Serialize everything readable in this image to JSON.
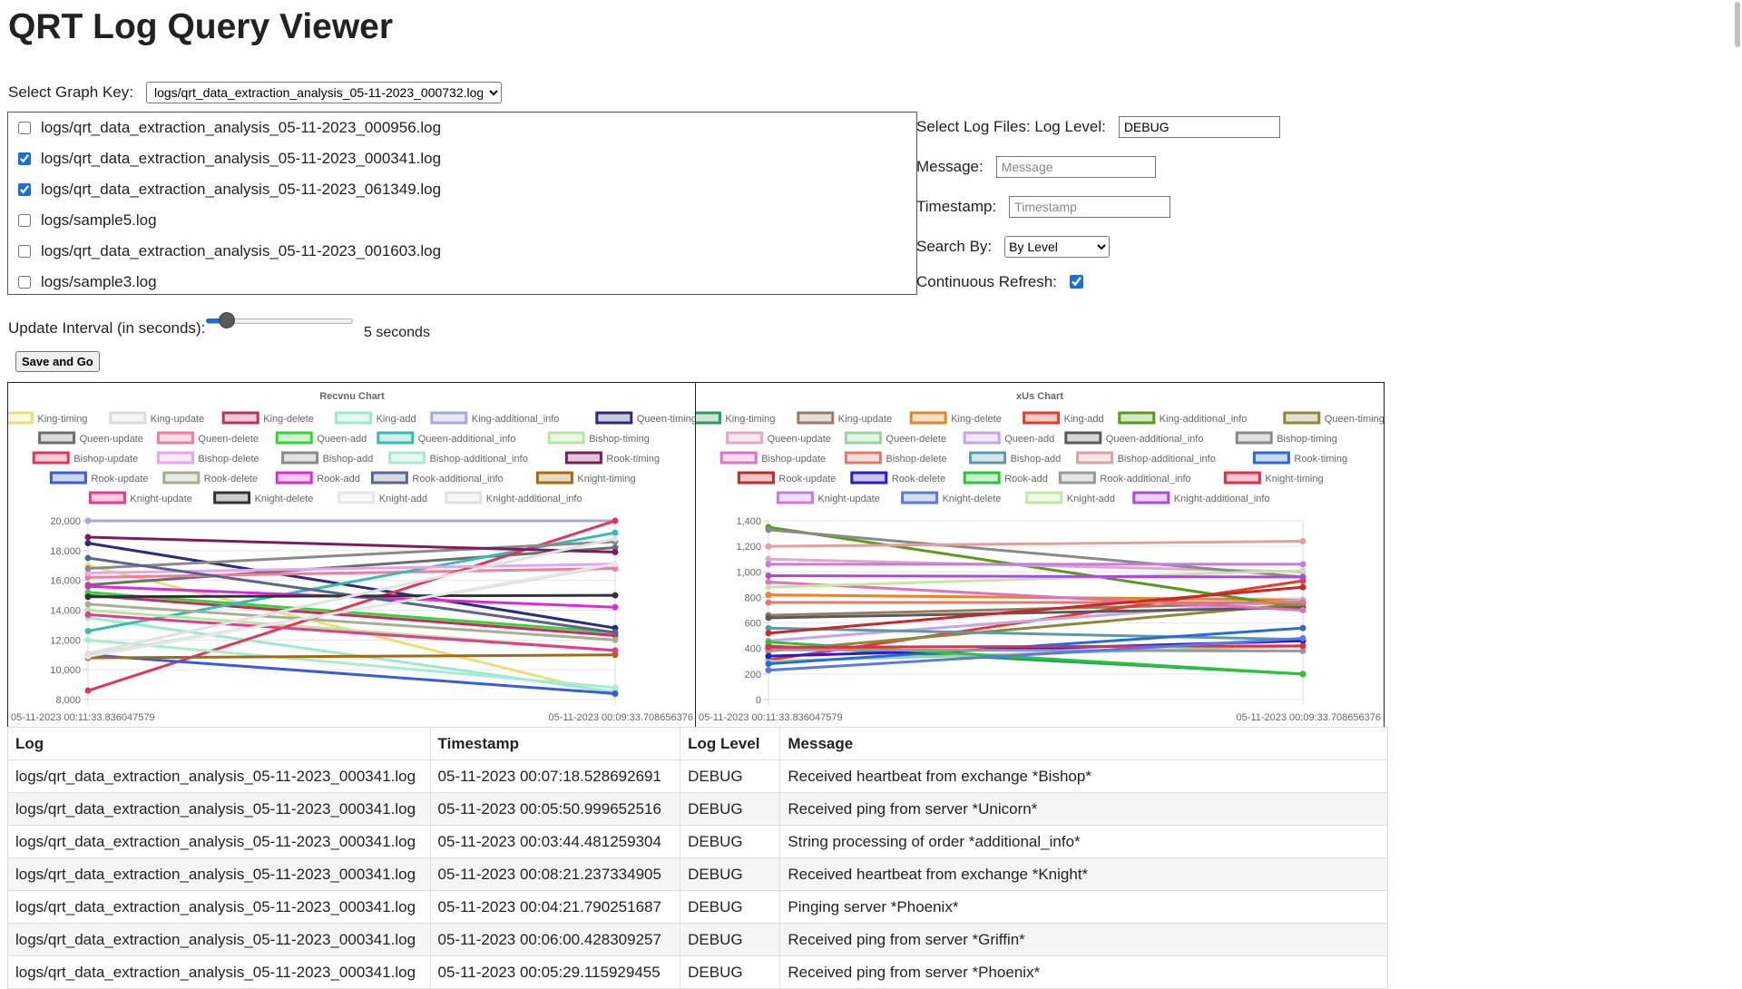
{
  "page": {
    "title": "QRT Log Query Viewer"
  },
  "graph_key": {
    "label": "Select Graph Key:",
    "selected": "logs/qrt_data_extraction_analysis_05-11-2023_000732.log"
  },
  "files": [
    {
      "name": "logs/qrt_data_extraction_analysis_05-11-2023_000956.log",
      "checked": false
    },
    {
      "name": "logs/qrt_data_extraction_analysis_05-11-2023_000341.log",
      "checked": true
    },
    {
      "name": "logs/qrt_data_extraction_analysis_05-11-2023_061349.log",
      "checked": true
    },
    {
      "name": "logs/sample5.log",
      "checked": false
    },
    {
      "name": "logs/qrt_data_extraction_analysis_05-11-2023_001603.log",
      "checked": false
    },
    {
      "name": "logs/sample3.log",
      "checked": false
    }
  ],
  "filters": {
    "log_level_label": "Select Log Files: Log Level:",
    "log_level_value": "DEBUG",
    "message_label": "Message:",
    "message_placeholder": "Message",
    "timestamp_label": "Timestamp:",
    "timestamp_placeholder": "Timestamp",
    "search_by_label": "Search By:",
    "search_by_value": "By Level",
    "refresh_label": "Continuous Refresh:",
    "refresh_checked": true
  },
  "interval": {
    "label": "Update Interval (in seconds):",
    "value_text": "5 seconds",
    "slider_fraction": 0.08
  },
  "save_button": "Save and Go",
  "chart_data": [
    {
      "type": "line",
      "title": "Recvnu Chart",
      "x": [
        "05-11-2023 00:11:33.836047579",
        "05-11-2023 00:09:33.708656376"
      ],
      "ylim": [
        8000,
        20000
      ],
      "yticks": [
        "8,000",
        "10,000",
        "12,000",
        "14,000",
        "16,000",
        "18,000",
        "20,000"
      ],
      "grid": true,
      "legend_position": "top",
      "series": [
        {
          "name": "King-timing",
          "color": "#e6e07a",
          "values": [
            17000,
            8300
          ]
        },
        {
          "name": "King-update",
          "color": "#d9dcd8",
          "values": [
            11000,
            17000
          ]
        },
        {
          "name": "King-delete",
          "color": "#c42d61",
          "values": [
            15000,
            12300
          ]
        },
        {
          "name": "King-add",
          "color": "#9ee8d0",
          "values": [
            13500,
            8500
          ]
        },
        {
          "name": "King-additional_info",
          "color": "#a9a9d8",
          "values": [
            20000,
            20000
          ]
        },
        {
          "name": "Queen-timing",
          "color": "#2c2c7a",
          "values": [
            18500,
            12800
          ]
        },
        {
          "name": "Queen-update",
          "color": "#6d6d6d",
          "values": [
            15700,
            18200
          ]
        },
        {
          "name": "Queen-delete",
          "color": "#f07ca0",
          "values": [
            16200,
            16800
          ]
        },
        {
          "name": "Queen-add",
          "color": "#38d338",
          "values": [
            15200,
            12500
          ]
        },
        {
          "name": "Queen-additional_info",
          "color": "#37bcaf",
          "values": [
            12600,
            19200
          ]
        },
        {
          "name": "Bishop-timing",
          "color": "#b5e6a2",
          "values": [
            14000,
            11300
          ]
        },
        {
          "name": "Bishop-update",
          "color": "#e0365c",
          "values": [
            8600,
            20000
          ]
        },
        {
          "name": "Bishop-delete",
          "color": "#e9a6e6",
          "values": [
            16500,
            17100
          ]
        },
        {
          "name": "Bishop-add",
          "color": "#8a8a8a",
          "values": [
            16800,
            18600
          ]
        },
        {
          "name": "Bishop-additional_info",
          "color": "#a8ecd0",
          "values": [
            12000,
            8800
          ]
        },
        {
          "name": "Rook-timing",
          "color": "#7a1e5e",
          "values": [
            18900,
            17900
          ]
        },
        {
          "name": "Rook-update",
          "color": "#3a5bdc",
          "values": [
            11000,
            8400
          ]
        },
        {
          "name": "Rook-delete",
          "color": "#a8ad93",
          "values": [
            14400,
            12000
          ]
        },
        {
          "name": "Rook-add",
          "color": "#dd2ad6",
          "values": [
            15600,
            14200
          ]
        },
        {
          "name": "Rook-additional_info",
          "color": "#5b648c",
          "values": [
            17500,
            12500
          ]
        },
        {
          "name": "Knight-timing",
          "color": "#a36a12",
          "values": [
            10800,
            11000
          ]
        },
        {
          "name": "Knight-update",
          "color": "#e63a8c",
          "values": [
            13700,
            11300
          ]
        },
        {
          "name": "Knight-delete",
          "color": "#333333",
          "values": [
            14900,
            15000
          ]
        },
        {
          "name": "Knight-add",
          "color": "#e7e7e7",
          "values": [
            10900,
            17100
          ]
        },
        {
          "name": "Knight-additional_info",
          "color": "#e1e1e1",
          "values": [
            11100,
            18800
          ]
        }
      ]
    },
    {
      "type": "line",
      "title": "xUs Chart",
      "x": [
        "05-11-2023 00:11:33.836047579",
        "05-11-2023 00:09:33.708656376"
      ],
      "ylim": [
        0,
        1400
      ],
      "yticks": [
        "0",
        "200",
        "400",
        "600",
        "800",
        "1,000",
        "1,200",
        "1,400"
      ],
      "grid": true,
      "legend_position": "top",
      "series": [
        {
          "name": "King-timing",
          "color": "#2a9a64",
          "values": [
            420,
            200
          ]
        },
        {
          "name": "King-update",
          "color": "#9a7a64",
          "values": [
            660,
            760
          ]
        },
        {
          "name": "King-delete",
          "color": "#e6842a",
          "values": [
            820,
            780
          ]
        },
        {
          "name": "King-add",
          "color": "#e63a2a",
          "values": [
            310,
            930
          ]
        },
        {
          "name": "King-additional_info",
          "color": "#5a9a1a",
          "values": [
            1350,
            720
          ]
        },
        {
          "name": "Queen-timing",
          "color": "#8a8a3a",
          "values": [
            380,
            750
          ]
        },
        {
          "name": "Queen-update",
          "color": "#e6a6c6",
          "values": [
            1100,
            1000
          ]
        },
        {
          "name": "Queen-delete",
          "color": "#9ad49a",
          "values": [
            300,
            420
          ]
        },
        {
          "name": "Queen-add",
          "color": "#c6a6e6",
          "values": [
            460,
            780
          ]
        },
        {
          "name": "Queen-additional_info",
          "color": "#5a5a5a",
          "values": [
            640,
            720
          ]
        },
        {
          "name": "Bishop-timing",
          "color": "#8a8a8a",
          "values": [
            1330,
            960
          ]
        },
        {
          "name": "Bishop-update",
          "color": "#e070c0",
          "values": [
            920,
            700
          ]
        },
        {
          "name": "Bishop-delete",
          "color": "#e07a6a",
          "values": [
            760,
            760
          ]
        },
        {
          "name": "Bishop-add",
          "color": "#5a9aaa",
          "values": [
            560,
            470
          ]
        },
        {
          "name": "Bishop-additional_info",
          "color": "#e0a0a0",
          "values": [
            1200,
            1240
          ]
        },
        {
          "name": "Rook-timing",
          "color": "#2a6ad4",
          "values": [
            280,
            560
          ]
        },
        {
          "name": "Rook-update",
          "color": "#c42a2a",
          "values": [
            520,
            880
          ]
        },
        {
          "name": "Rook-delete",
          "color": "#2a1ad4",
          "values": [
            340,
            460
          ]
        },
        {
          "name": "Rook-add",
          "color": "#2ac43a",
          "values": [
            450,
            200
          ]
        },
        {
          "name": "Rook-additional_info",
          "color": "#9a9a9a",
          "values": [
            390,
            380
          ]
        },
        {
          "name": "Knight-timing",
          "color": "#e62a4a",
          "values": [
            410,
            420
          ]
        },
        {
          "name": "Knight-update",
          "color": "#c67ae6",
          "values": [
            1060,
            1060
          ]
        },
        {
          "name": "Knight-delete",
          "color": "#5a7ae0",
          "values": [
            230,
            480
          ]
        },
        {
          "name": "Knight-add",
          "color": "#c6e6a6",
          "values": [
            880,
            1010
          ]
        },
        {
          "name": "Knight-additional_info",
          "color": "#aa4ae0",
          "values": [
            970,
            960
          ]
        }
      ]
    }
  ],
  "table": {
    "headers": [
      "Log",
      "Timestamp",
      "Log Level",
      "Message"
    ],
    "rows": [
      [
        "logs/qrt_data_extraction_analysis_05-11-2023_000341.log",
        "05-11-2023 00:07:18.528692691",
        "DEBUG",
        "Received heartbeat from exchange *Bishop*"
      ],
      [
        "logs/qrt_data_extraction_analysis_05-11-2023_000341.log",
        "05-11-2023 00:05:50.999652516",
        "DEBUG",
        "Received ping from server *Unicorn*"
      ],
      [
        "logs/qrt_data_extraction_analysis_05-11-2023_000341.log",
        "05-11-2023 00:03:44.481259304",
        "DEBUG",
        "String processing of order *additional_info*"
      ],
      [
        "logs/qrt_data_extraction_analysis_05-11-2023_000341.log",
        "05-11-2023 00:08:21.237334905",
        "DEBUG",
        "Received heartbeat from exchange *Knight*"
      ],
      [
        "logs/qrt_data_extraction_analysis_05-11-2023_000341.log",
        "05-11-2023 00:04:21.790251687",
        "DEBUG",
        "Pinging server *Phoenix*"
      ],
      [
        "logs/qrt_data_extraction_analysis_05-11-2023_000341.log",
        "05-11-2023 00:06:00.428309257",
        "DEBUG",
        "Received ping from server *Griffin*"
      ],
      [
        "logs/qrt_data_extraction_analysis_05-11-2023_000341.log",
        "05-11-2023 00:05:29.115929455",
        "DEBUG",
        "Received ping from server *Phoenix*"
      ]
    ]
  }
}
